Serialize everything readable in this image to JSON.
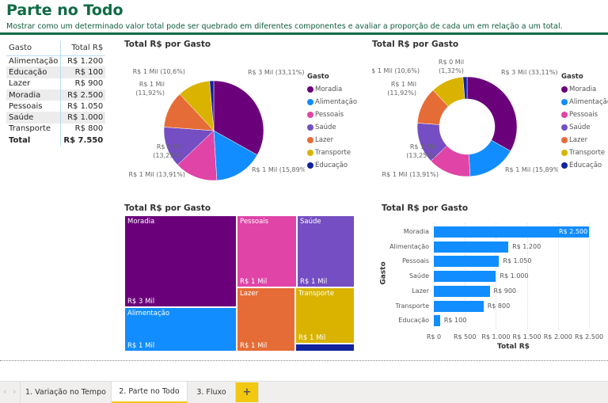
{
  "header": {
    "title": "Parte no Todo",
    "subtitle": "Mostrar como um determinado valor total pode ser quebrado em diferentes componentes e avaliar a proporção de cada um em relação a um total."
  },
  "table": {
    "headers": [
      "Gasto",
      "Total R$"
    ],
    "rows": [
      [
        "Alimentação",
        "R$ 1.200"
      ],
      [
        "Educação",
        "R$ 100"
      ],
      [
        "Lazer",
        "R$ 900"
      ],
      [
        "Moradia",
        "R$ 2.500"
      ],
      [
        "Pessoais",
        "R$ 1.050"
      ],
      [
        "Saúde",
        "R$ 1.000"
      ],
      [
        "Transporte",
        "R$ 800"
      ]
    ],
    "total": [
      "Total",
      "R$ 7.550"
    ]
  },
  "colors": {
    "Moradia": "#6b007b",
    "Alimentação": "#118dff",
    "Pessoais": "#e044a7",
    "Saúde": "#744ec2",
    "Lazer": "#e66c37",
    "Transporte": "#d9b300",
    "Educação": "#12239e",
    "brand": "#0f6b45",
    "bar": "#118dff",
    "tab_accent": "#f2c811"
  },
  "chart_data": [
    {
      "type": "pie",
      "title": "Total R$ por Gasto",
      "legend_title": "Gasto",
      "legend_position": "right",
      "categories": [
        "Moradia",
        "Alimentação",
        "Pessoais",
        "Saúde",
        "Lazer",
        "Transporte",
        "Educação"
      ],
      "values": [
        2500,
        1200,
        1050,
        1000,
        900,
        800,
        100
      ],
      "data_labels": [
        "R$ 3 Mil (33,11%)",
        "R$ 1 Mil (15,89%)",
        "R$ 1 Mil (13,91%)",
        "R$ 1 Mil (13,25%)",
        "R$ 1 Mil (11,92%)",
        "R$ 1 Mil (10,6%)",
        ""
      ]
    },
    {
      "type": "donut",
      "title": "Total R$ por Gasto",
      "legend_title": "Gasto",
      "legend_position": "right",
      "categories": [
        "Moradia",
        "Alimentação",
        "Pessoais",
        "Saúde",
        "Lazer",
        "Transporte",
        "Educação"
      ],
      "values": [
        2500,
        1200,
        1050,
        1000,
        900,
        800,
        100
      ],
      "data_labels": [
        "R$ 3 Mil (33,11%)",
        "R$ 1 Mil (15,89%)",
        "R$ 1 Mil (13,91%)",
        "R$ 1 Mil (13,25%)",
        "R$ 1 Mil (11,92%)",
        "R$ 1 Mil (10,6%)",
        "R$ 0 Mil (1,32%)"
      ]
    },
    {
      "type": "treemap",
      "title": "Total R$ por Gasto",
      "categories": [
        "Moradia",
        "Alimentação",
        "Pessoais",
        "Saúde",
        "Lazer",
        "Transporte",
        "Educação"
      ],
      "values": [
        2500,
        1200,
        1050,
        1000,
        900,
        800,
        100
      ],
      "data_labels": [
        "R$ 3 Mil",
        "R$ 1 Mil",
        "R$ 1 Mil",
        "R$ 1 Mil",
        "R$ 1 Mil",
        "R$ 1 Mil",
        ""
      ]
    },
    {
      "type": "bar",
      "orientation": "horizontal",
      "title": "Total R$ por Gasto",
      "xlabel": "Total R$",
      "ylabel": "Gasto",
      "categories": [
        "Moradia",
        "Alimentação",
        "Pessoais",
        "Saúde",
        "Lazer",
        "Transporte",
        "Educação"
      ],
      "values": [
        2500,
        1200,
        1050,
        1000,
        900,
        800,
        100
      ],
      "data_labels": [
        "R$ 2.500",
        "R$ 1.200",
        "R$ 1.050",
        "R$ 1.000",
        "R$ 900",
        "R$ 800",
        "R$ 100"
      ],
      "xlim": [
        0,
        2500
      ],
      "x_ticks": [
        "R$ 0",
        "R$ 500",
        "R$ 1.000",
        "R$ 1.500",
        "R$ 2.000",
        "R$ 2.500"
      ],
      "grid": true
    }
  ],
  "tabs": [
    "1. Variação no Tempo",
    "2. Parte no Todo",
    "3. Fluxo"
  ],
  "add_tab_label": "+",
  "nav": {
    "prev": "‹",
    "next": "›"
  }
}
